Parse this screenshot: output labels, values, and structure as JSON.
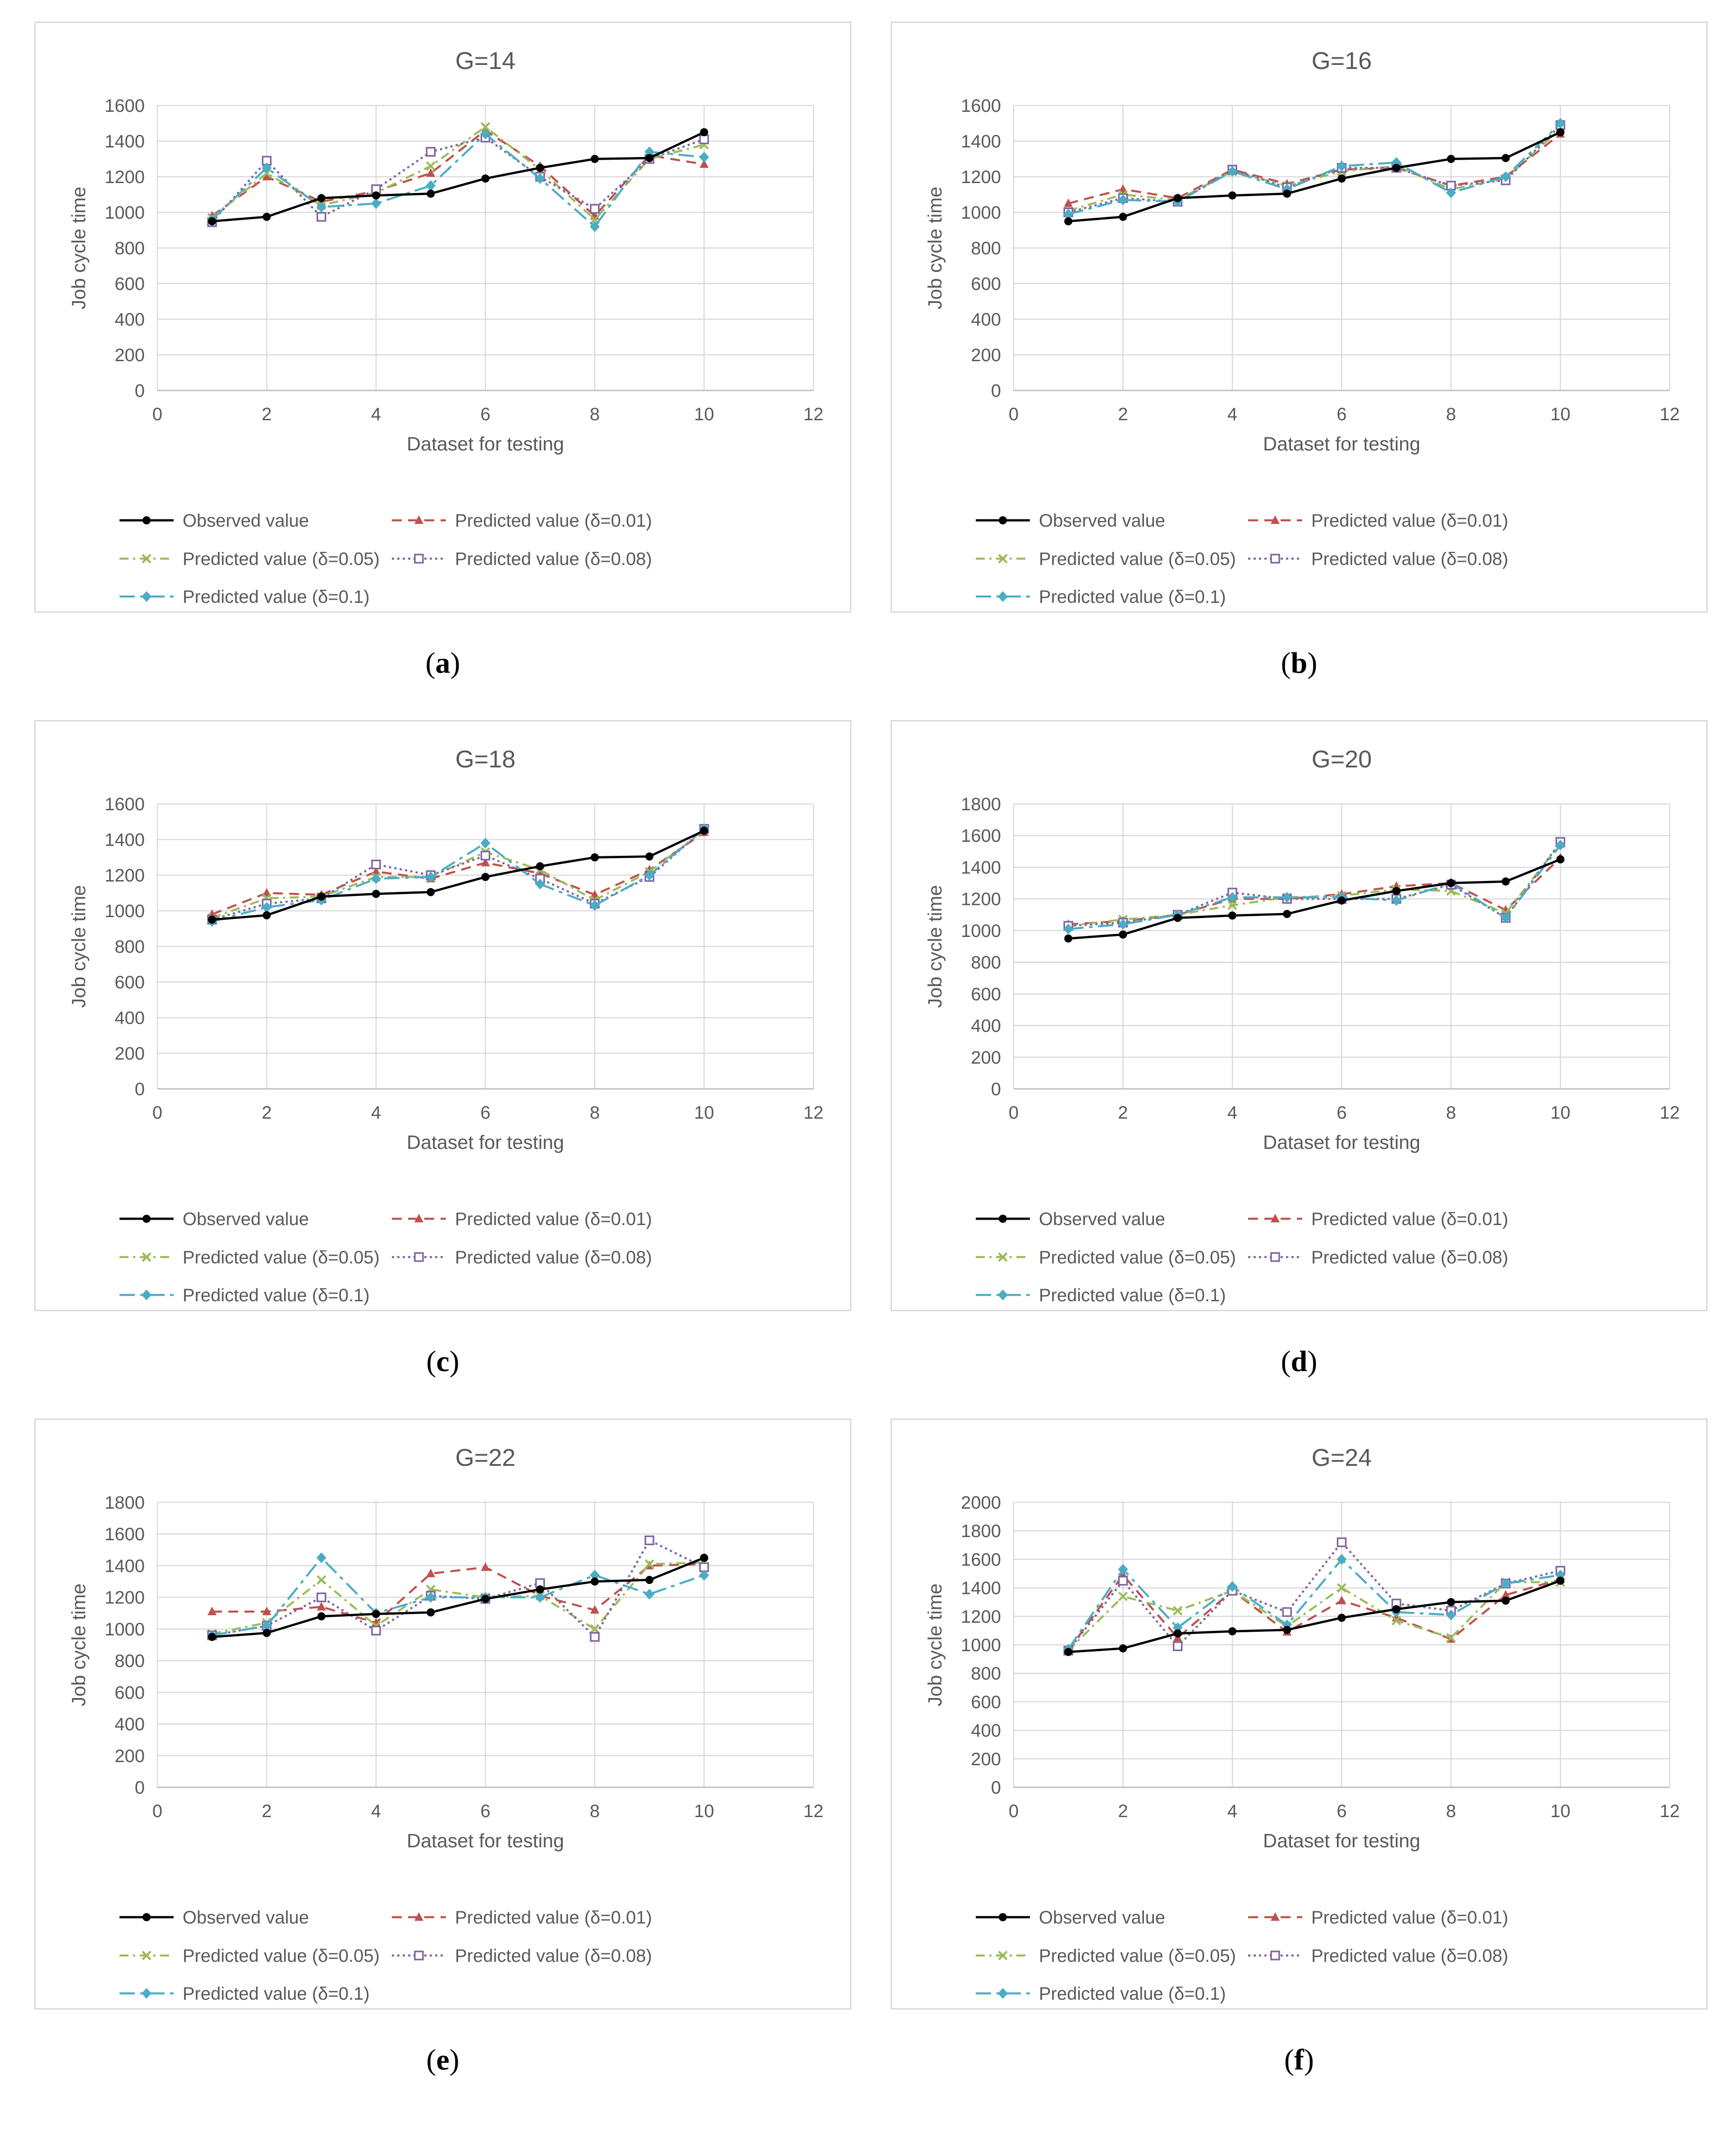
{
  "colors": {
    "observed": "#000000",
    "d001": "#c0504d",
    "d005": "#9bbb59",
    "d008": "#8064a2",
    "d01": "#4bacc6",
    "grid": "#d9d9d9",
    "text": "#595959"
  },
  "legend": {
    "observed": "Observed value",
    "d001": "Predicted value (δ=0.01)",
    "d005": "Predicted value (δ=0.05)",
    "d008": "Predicted value (δ=0.08)",
    "d01": "Predicted value (δ=0.1)"
  },
  "chart_data": [
    {
      "type": "line",
      "caption": "a",
      "title": "G=14",
      "xlabel": "Dataset for testing",
      "ylabel": "Job cycle time",
      "xlim": [
        0,
        12
      ],
      "xticks": [
        0,
        2,
        4,
        6,
        8,
        10,
        12
      ],
      "ylim": [
        0,
        1600
      ],
      "yticks": [
        0,
        200,
        400,
        600,
        800,
        1000,
        1200,
        1400,
        1600
      ],
      "x": [
        1,
        2,
        3,
        4,
        5,
        6,
        7,
        8,
        9,
        10
      ],
      "series": [
        {
          "key": "observed",
          "name": "Observed value",
          "values": [
            950,
            975,
            1080,
            1095,
            1105,
            1190,
            1250,
            1300,
            1305,
            1450
          ]
        },
        {
          "key": "d001",
          "name": "Predicted value (δ=0.01)",
          "values": [
            980,
            1200,
            1060,
            1120,
            1220,
            1460,
            1260,
            980,
            1320,
            1270
          ]
        },
        {
          "key": "d005",
          "name": "Predicted value (δ=0.05)",
          "values": [
            970,
            1220,
            1040,
            1110,
            1260,
            1480,
            1240,
            960,
            1300,
            1380
          ]
        },
        {
          "key": "d008",
          "name": "Predicted value (δ=0.08)",
          "values": [
            945,
            1290,
            975,
            1130,
            1340,
            1420,
            1200,
            1020,
            1300,
            1410
          ]
        },
        {
          "key": "d01",
          "name": "Predicted value (δ=0.1)",
          "values": [
            960,
            1250,
            1030,
            1050,
            1150,
            1440,
            1190,
            920,
            1340,
            1310
          ]
        }
      ]
    },
    {
      "type": "line",
      "caption": "b",
      "title": "G=16",
      "xlabel": "Dataset for testing",
      "ylabel": "Job cycle time",
      "xlim": [
        0,
        12
      ],
      "xticks": [
        0,
        2,
        4,
        6,
        8,
        10,
        12
      ],
      "ylim": [
        0,
        1600
      ],
      "yticks": [
        0,
        200,
        400,
        600,
        800,
        1000,
        1200,
        1400,
        1600
      ],
      "x": [
        1,
        2,
        3,
        4,
        5,
        6,
        7,
        8,
        9,
        10
      ],
      "series": [
        {
          "key": "observed",
          "name": "Observed value",
          "values": [
            950,
            975,
            1080,
            1095,
            1105,
            1190,
            1250,
            1300,
            1305,
            1450
          ]
        },
        {
          "key": "d001",
          "name": "Predicted value (δ=0.01)",
          "values": [
            1050,
            1130,
            1080,
            1240,
            1160,
            1240,
            1250,
            1150,
            1200,
            1440
          ]
        },
        {
          "key": "d005",
          "name": "Predicted value (δ=0.05)",
          "values": [
            1010,
            1100,
            1070,
            1230,
            1150,
            1230,
            1260,
            1130,
            1190,
            1470
          ]
        },
        {
          "key": "d008",
          "name": "Predicted value (δ=0.08)",
          "values": [
            1000,
            1080,
            1060,
            1240,
            1140,
            1250,
            1250,
            1150,
            1180,
            1490
          ]
        },
        {
          "key": "d01",
          "name": "Predicted value (δ=0.1)",
          "values": [
            990,
            1070,
            1060,
            1230,
            1130,
            1260,
            1280,
            1110,
            1200,
            1500
          ]
        }
      ]
    },
    {
      "type": "line",
      "caption": "c",
      "title": "G=18",
      "xlabel": "Dataset for testing",
      "ylabel": "Job cycle time",
      "xlim": [
        0,
        12
      ],
      "xticks": [
        0,
        2,
        4,
        6,
        8,
        10,
        12
      ],
      "ylim": [
        0,
        1600
      ],
      "yticks": [
        0,
        200,
        400,
        600,
        800,
        1000,
        1200,
        1400,
        1600
      ],
      "x": [
        1,
        2,
        3,
        4,
        5,
        6,
        7,
        8,
        9,
        10
      ],
      "series": [
        {
          "key": "observed",
          "name": "Observed value",
          "values": [
            950,
            975,
            1080,
            1095,
            1105,
            1190,
            1250,
            1300,
            1305,
            1450
          ]
        },
        {
          "key": "d001",
          "name": "Predicted value (δ=0.01)",
          "values": [
            980,
            1100,
            1090,
            1220,
            1180,
            1270,
            1210,
            1090,
            1230,
            1440
          ]
        },
        {
          "key": "d005",
          "name": "Predicted value (δ=0.05)",
          "values": [
            960,
            1070,
            1080,
            1190,
            1190,
            1330,
            1230,
            1060,
            1220,
            1450
          ]
        },
        {
          "key": "d008",
          "name": "Predicted value (δ=0.08)",
          "values": [
            950,
            1040,
            1070,
            1260,
            1200,
            1310,
            1180,
            1040,
            1190,
            1460
          ]
        },
        {
          "key": "d01",
          "name": "Predicted value (δ=0.1)",
          "values": [
            940,
            1020,
            1060,
            1180,
            1190,
            1380,
            1150,
            1030,
            1200,
            1460
          ]
        }
      ]
    },
    {
      "type": "line",
      "caption": "d",
      "title": "G=20",
      "xlabel": "Dataset for testing",
      "ylabel": "Job cycle time",
      "xlim": [
        0,
        12
      ],
      "xticks": [
        0,
        2,
        4,
        6,
        8,
        10,
        12
      ],
      "ylim": [
        0,
        1800
      ],
      "yticks": [
        0,
        200,
        400,
        600,
        800,
        1000,
        1200,
        1400,
        1600,
        1800
      ],
      "x": [
        1,
        2,
        3,
        4,
        5,
        6,
        7,
        8,
        9,
        10
      ],
      "series": [
        {
          "key": "observed",
          "name": "Observed value",
          "values": [
            950,
            975,
            1080,
            1095,
            1105,
            1190,
            1250,
            1300,
            1310,
            1450
          ]
        },
        {
          "key": "d001",
          "name": "Predicted value (δ=0.01)",
          "values": [
            1040,
            1060,
            1100,
            1200,
            1200,
            1230,
            1280,
            1300,
            1130,
            1460
          ]
        },
        {
          "key": "d005",
          "name": "Predicted value (δ=0.05)",
          "values": [
            1030,
            1070,
            1100,
            1160,
            1210,
            1220,
            1260,
            1250,
            1110,
            1550
          ]
        },
        {
          "key": "d008",
          "name": "Predicted value (δ=0.08)",
          "values": [
            1030,
            1050,
            1100,
            1240,
            1200,
            1200,
            1200,
            1290,
            1080,
            1560
          ]
        },
        {
          "key": "d01",
          "name": "Predicted value (δ=0.1)",
          "values": [
            1010,
            1040,
            1100,
            1210,
            1210,
            1210,
            1190,
            1300,
            1080,
            1540
          ]
        }
      ]
    },
    {
      "type": "line",
      "caption": "e",
      "title": "G=22",
      "xlabel": "Dataset for testing",
      "ylabel": "Job cycle time",
      "xlim": [
        0,
        12
      ],
      "xticks": [
        0,
        2,
        4,
        6,
        8,
        10,
        12
      ],
      "ylim": [
        0,
        1800
      ],
      "yticks": [
        0,
        200,
        400,
        600,
        800,
        1000,
        1200,
        1400,
        1600,
        1800
      ],
      "x": [
        1,
        2,
        3,
        4,
        5,
        6,
        7,
        8,
        9,
        10
      ],
      "series": [
        {
          "key": "observed",
          "name": "Observed value",
          "values": [
            950,
            975,
            1080,
            1095,
            1105,
            1190,
            1250,
            1300,
            1310,
            1450
          ]
        },
        {
          "key": "d001",
          "name": "Predicted value (δ=0.01)",
          "values": [
            1110,
            1110,
            1140,
            1040,
            1350,
            1390,
            1210,
            1120,
            1400,
            1410
          ]
        },
        {
          "key": "d005",
          "name": "Predicted value (δ=0.05)",
          "values": [
            970,
            1040,
            1310,
            1020,
            1250,
            1200,
            1210,
            1000,
            1410,
            1420
          ]
        },
        {
          "key": "d008",
          "name": "Predicted value (δ=0.08)",
          "values": [
            960,
            1020,
            1200,
            990,
            1210,
            1190,
            1290,
            950,
            1560,
            1390
          ]
        },
        {
          "key": "d01",
          "name": "Predicted value (δ=0.1)",
          "values": [
            960,
            1020,
            1450,
            1100,
            1200,
            1200,
            1200,
            1340,
            1220,
            1340
          ]
        }
      ]
    },
    {
      "type": "line",
      "caption": "f",
      "title": "G=24",
      "xlabel": "Dataset for testing",
      "ylabel": "Job cycle time",
      "xlim": [
        0,
        12
      ],
      "xticks": [
        0,
        2,
        4,
        6,
        8,
        10,
        12
      ],
      "ylim": [
        0,
        2000
      ],
      "yticks": [
        0,
        200,
        400,
        600,
        800,
        1000,
        1200,
        1400,
        1600,
        1800,
        2000
      ],
      "x": [
        1,
        2,
        3,
        4,
        5,
        6,
        7,
        8,
        9,
        10
      ],
      "series": [
        {
          "key": "observed",
          "name": "Observed value",
          "values": [
            950,
            975,
            1080,
            1095,
            1105,
            1190,
            1250,
            1300,
            1310,
            1450
          ]
        },
        {
          "key": "d001",
          "name": "Predicted value (δ=0.01)",
          "values": [
            960,
            1490,
            1050,
            1380,
            1090,
            1310,
            1190,
            1040,
            1350,
            1460
          ]
        },
        {
          "key": "d005",
          "name": "Predicted value (δ=0.05)",
          "values": [
            960,
            1340,
            1240,
            1380,
            1130,
            1400,
            1170,
            1050,
            1440,
            1440
          ]
        },
        {
          "key": "d008",
          "name": "Predicted value (δ=0.08)",
          "values": [
            960,
            1450,
            990,
            1380,
            1230,
            1720,
            1290,
            1240,
            1430,
            1520
          ]
        },
        {
          "key": "d01",
          "name": "Predicted value (δ=0.1)",
          "values": [
            970,
            1530,
            1120,
            1410,
            1140,
            1600,
            1230,
            1210,
            1430,
            1490
          ]
        }
      ]
    }
  ]
}
